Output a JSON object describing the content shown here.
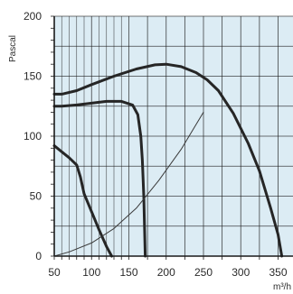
{
  "chart_data": {
    "type": "line",
    "ylabel": "Pascal",
    "xlabel": "m³/h",
    "xlim": [
      50,
      370
    ],
    "ylim": [
      0,
      200
    ],
    "x_ticks": [
      50,
      100,
      150,
      200,
      250,
      300,
      350
    ],
    "y_ticks": [
      0,
      50,
      100,
      150,
      200
    ],
    "grid": true,
    "colors": {
      "background": "#dcecf4",
      "grid": "#1a1a1a",
      "curve": "#262626",
      "system_curve": "#3a3a3a"
    },
    "series": [
      {
        "x": [
          50,
          60,
          80,
          100,
          130,
          160,
          185,
          200,
          220,
          240,
          255,
          270,
          290,
          310,
          325,
          340,
          350,
          355
        ],
        "y": [
          135,
          135,
          138,
          143,
          150,
          156,
          159.5,
          160,
          158,
          153,
          147,
          138,
          119,
          94,
          71,
          40,
          18,
          0
        ]
      },
      {
        "x": [
          50,
          60,
          80,
          100,
          120,
          140,
          155,
          162,
          166,
          168,
          170,
          171,
          172
        ],
        "y": [
          125,
          125,
          126,
          127.5,
          129,
          129,
          126,
          118,
          100,
          80,
          50,
          25,
          0
        ]
      },
      {
        "x": [
          50,
          60,
          70,
          80,
          85,
          90,
          100,
          110,
          120,
          127
        ],
        "y": [
          92,
          87,
          82,
          76,
          66,
          52,
          37,
          22,
          8,
          0
        ]
      },
      {
        "x": [
          50,
          70,
          100,
          130,
          160,
          190,
          220,
          250
        ],
        "y": [
          0,
          3.5,
          11,
          23,
          40,
          63,
          89,
          120
        ]
      }
    ]
  }
}
